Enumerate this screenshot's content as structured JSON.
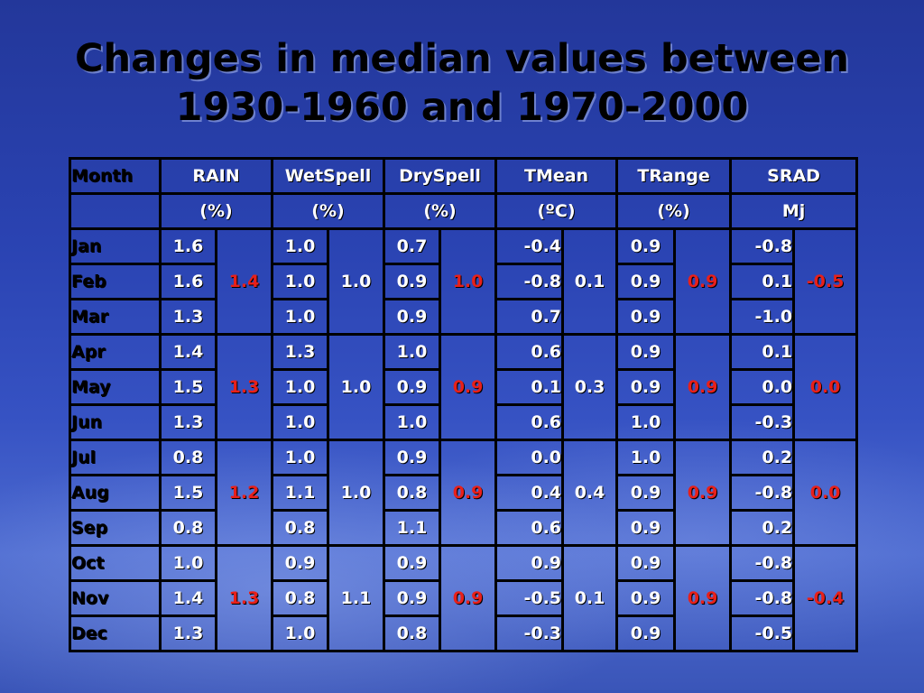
{
  "title": {
    "line1": "Changes in median values between",
    "line2": "1930-1960 and 1970-2000"
  },
  "table": {
    "headers": [
      "Month",
      "RAIN",
      "WetSpell",
      "DrySpell",
      "TMean",
      "TRange",
      "SRAD"
    ],
    "units": [
      "",
      "(%)",
      "(%)",
      "(%)",
      "(ºC)",
      "(%)",
      "Mj"
    ],
    "rows": [
      {
        "month": "Jan",
        "rain": "1.6",
        "wet": "1.0",
        "dry": "0.7",
        "tmean": "-0.4",
        "trange": "0.9",
        "srad": "-0.8"
      },
      {
        "month": "Feb",
        "rain": "1.6",
        "wet": "1.0",
        "dry": "0.9",
        "tmean": "-0.8",
        "trange": "0.9",
        "srad": "0.1"
      },
      {
        "month": "Mar",
        "rain": "1.3",
        "wet": "1.0",
        "dry": "0.9",
        "tmean": "0.7",
        "trange": "0.9",
        "srad": "-1.0"
      },
      {
        "month": "Apr",
        "rain": "1.4",
        "wet": "1.3",
        "dry": "1.0",
        "tmean": "0.6",
        "trange": "0.9",
        "srad": "0.1"
      },
      {
        "month": "May",
        "rain": "1.5",
        "wet": "1.0",
        "dry": "0.9",
        "tmean": "0.1",
        "trange": "0.9",
        "srad": "0.0"
      },
      {
        "month": "Jun",
        "rain": "1.3",
        "wet": "1.0",
        "dry": "1.0",
        "tmean": "0.6",
        "trange": "1.0",
        "srad": "-0.3"
      },
      {
        "month": "Jul",
        "rain": "0.8",
        "wet": "1.0",
        "dry": "0.9",
        "tmean": "0.0",
        "trange": "1.0",
        "srad": "0.2"
      },
      {
        "month": "Aug",
        "rain": "1.5",
        "wet": "1.1",
        "dry": "0.8",
        "tmean": "0.4",
        "trange": "0.9",
        "srad": "-0.8"
      },
      {
        "month": "Sep",
        "rain": "0.8",
        "wet": "0.8",
        "dry": "1.1",
        "tmean": "0.6",
        "trange": "0.9",
        "srad": "0.2"
      },
      {
        "month": "Oct",
        "rain": "1.0",
        "wet": "0.9",
        "dry": "0.9",
        "tmean": "0.9",
        "trange": "0.9",
        "srad": "-0.8"
      },
      {
        "month": "Nov",
        "rain": "1.4",
        "wet": "0.8",
        "dry": "0.9",
        "tmean": "-0.5",
        "trange": "0.9",
        "srad": "-0.8"
      },
      {
        "month": "Dec",
        "rain": "1.3",
        "wet": "1.0",
        "dry": "0.8",
        "tmean": "-0.3",
        "trange": "0.9",
        "srad": "-0.5"
      }
    ],
    "quarters": [
      {
        "rain": "1.4",
        "wet": "1.0",
        "dry": "1.0",
        "tmean": "0.1",
        "trange": "0.9",
        "srad": "-0.5"
      },
      {
        "rain": "1.3",
        "wet": "1.0",
        "dry": "0.9",
        "tmean": "0.3",
        "trange": "0.9",
        "srad": "0.0"
      },
      {
        "rain": "1.2",
        "wet": "1.0",
        "dry": "0.9",
        "tmean": "0.4",
        "trange": "0.9",
        "srad": "0.0"
      },
      {
        "rain": "1.3",
        "wet": "1.1",
        "dry": "0.9",
        "tmean": "0.1",
        "trange": "0.9",
        "srad": "-0.4"
      }
    ]
  },
  "colors": {
    "highlight_red": "#e8201a",
    "text_white": "#ffffff",
    "header_black": "#000000"
  }
}
